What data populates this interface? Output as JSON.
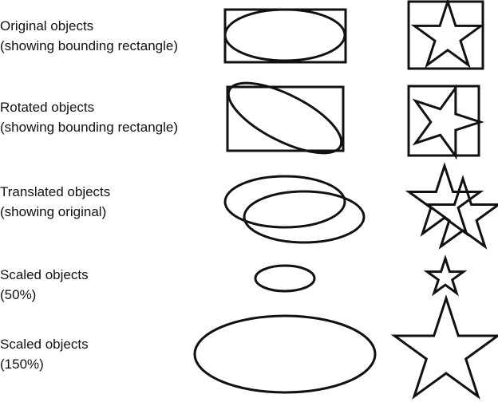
{
  "rows": [
    {
      "line1": "Original objects",
      "line2": "(showing bounding rectangle)"
    },
    {
      "line1": "Rotated objects",
      "line2": "(showing bounding rectangle)"
    },
    {
      "line1": "Translated objects",
      "line2": "(showing original)"
    },
    {
      "line1": "Scaled objects",
      "line2": "(50%)"
    },
    {
      "line1": "Scaled objects",
      "line2": "(150%)"
    }
  ],
  "colors": {
    "stroke": "#111111",
    "background": "#ffffff"
  }
}
